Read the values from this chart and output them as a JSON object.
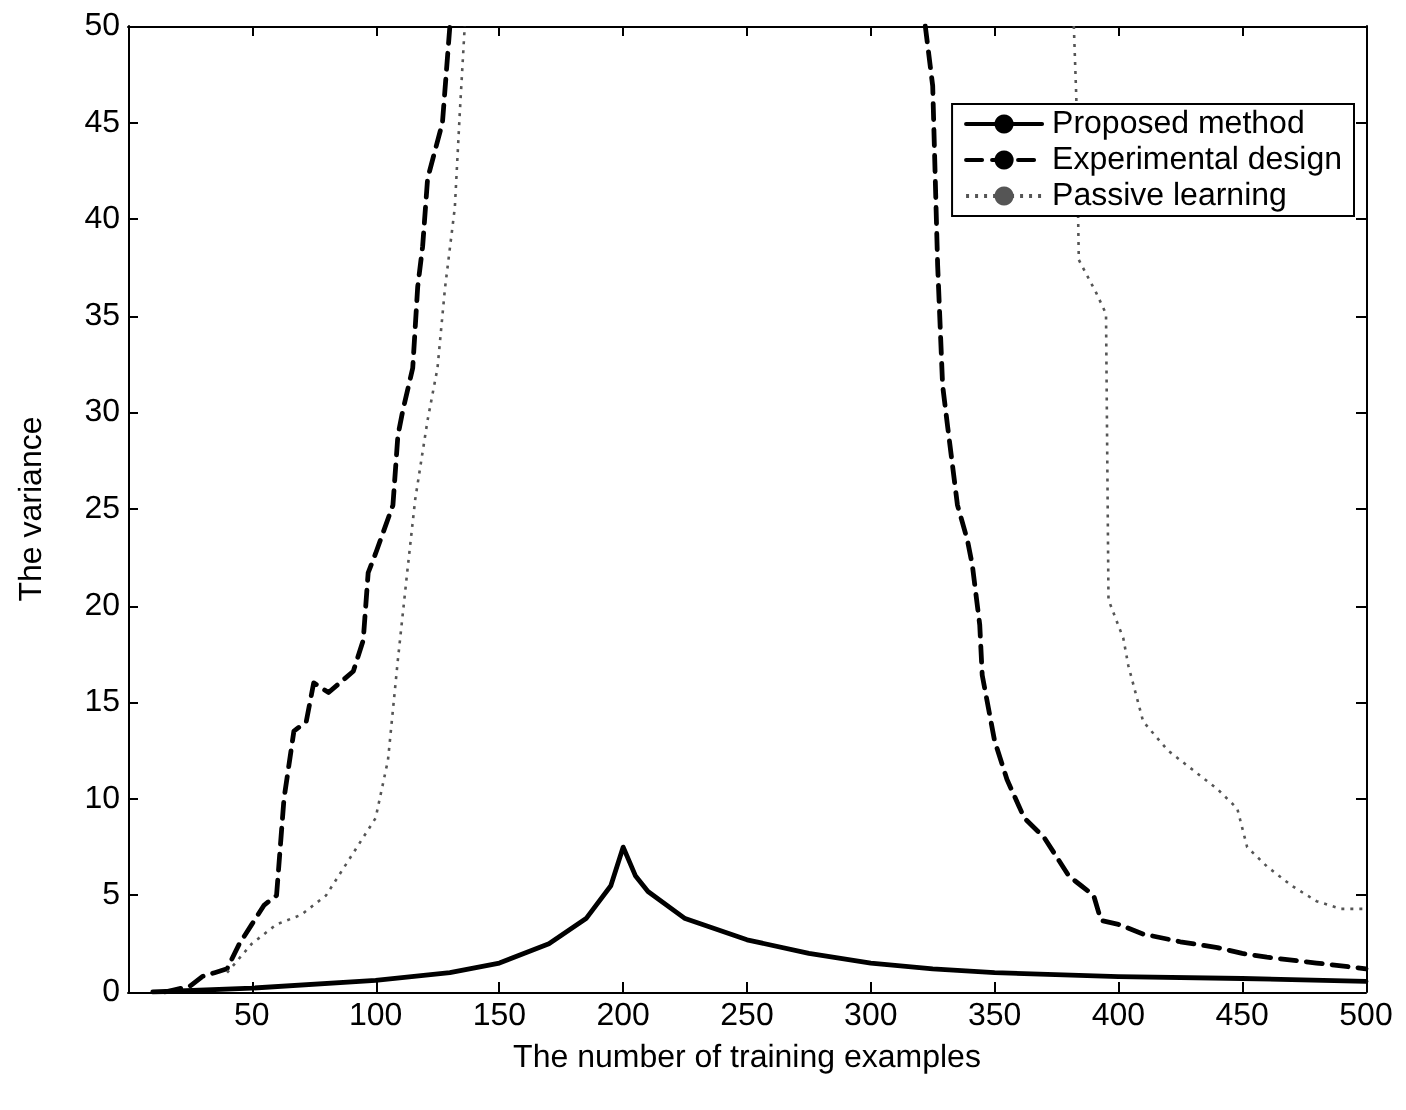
{
  "chart_data": {
    "type": "line",
    "xlabel": "The number of training examples",
    "ylabel": "The variance",
    "xlim": [
      0,
      500
    ],
    "ylim": [
      0,
      50
    ],
    "xticks": [
      50,
      100,
      150,
      200,
      250,
      300,
      350,
      400,
      450,
      500
    ],
    "yticks": [
      0,
      5,
      10,
      15,
      20,
      25,
      30,
      35,
      40,
      45,
      50
    ],
    "grid": false,
    "legend": "top right",
    "marker": "none",
    "series": [
      {
        "name": "Proposed method",
        "color": "#000000",
        "line_style": "solid",
        "x": [
          10,
          50,
          100,
          130,
          150,
          170,
          185,
          195,
          200,
          205,
          210,
          225,
          250,
          275,
          300,
          325,
          350,
          400,
          450,
          500
        ],
        "values": [
          0,
          0.2,
          0.6,
          1.0,
          1.5,
          2.5,
          3.8,
          5.5,
          7.5,
          6,
          5.2,
          3.8,
          2.7,
          2,
          1.5,
          1.2,
          1.0,
          0.8,
          0.7,
          0.55
        ]
      },
      {
        "name": "Experimental design",
        "color": "#000000",
        "line_style": "dashed",
        "x": [
          15,
          25,
          30,
          35,
          40,
          45,
          50,
          55,
          60,
          63,
          67,
          72,
          75,
          81,
          91,
          95,
          97,
          100,
          107,
          109,
          111,
          115,
          117,
          119,
          121,
          127,
          130,
          200,
          322,
          325,
          327,
          329,
          331,
          335,
          339,
          341,
          344,
          345,
          350,
          355,
          362,
          370,
          375,
          380,
          385,
          390,
          393,
          400,
          410,
          425,
          440,
          450,
          460,
          480,
          500
        ],
        "values": [
          0,
          0.3,
          0.8,
          1.0,
          1.2,
          2.5,
          3.5,
          4.5,
          5,
          10,
          13.5,
          14,
          16,
          15.5,
          16.6,
          18.2,
          21.7,
          22.7,
          25.2,
          28.8,
          30.1,
          32.3,
          36.5,
          38.6,
          42.1,
          45,
          50,
          null,
          50,
          46.9,
          37.6,
          31.4,
          29.3,
          25.2,
          23.4,
          22.1,
          19,
          16.4,
          13,
          11,
          9,
          8,
          7,
          6,
          5.5,
          5,
          3.7,
          3.5,
          3.0,
          2.6,
          2.3,
          2,
          1.8,
          1.5,
          1.2
        ]
      },
      {
        "name": "Passive learning",
        "color": "#555555",
        "line_style": "dotted",
        "x": [
          40,
          50,
          60,
          70,
          80,
          90,
          100,
          105,
          109,
          113,
          116,
          121,
          125,
          128,
          132,
          134,
          136,
          250,
          382,
          383,
          384,
          391,
          395,
          396,
          402,
          404,
          410,
          420,
          430,
          440,
          448,
          452,
          460,
          470,
          480,
          490,
          500
        ],
        "values": [
          1,
          2.5,
          3.5,
          4,
          5,
          7,
          9,
          12,
          17.2,
          22,
          25.5,
          29.6,
          32.3,
          36.4,
          40.6,
          45.5,
          50,
          null,
          50,
          46.3,
          37.9,
          36.2,
          35.1,
          20.3,
          18.3,
          16.9,
          14,
          12.5,
          11.5,
          10.5,
          9.5,
          7.5,
          6.5,
          5.5,
          4.7,
          4.3,
          4.3
        ]
      }
    ]
  }
}
